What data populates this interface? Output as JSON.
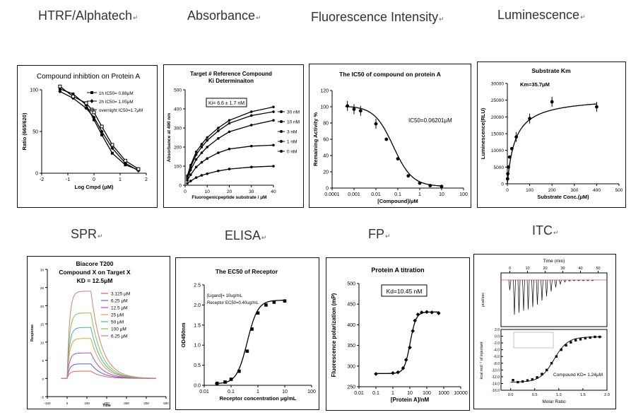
{
  "headings": {
    "htrf": "HTRF/Alphatech",
    "absorbance": "Absorbance",
    "fluorescence": "Fluorescence Intensity",
    "luminescence": "Luminescence",
    "spr": "SPR",
    "elisa": "ELISA",
    "fp": "FP",
    "itc": "ITC",
    "mark": "↵"
  },
  "chart_data": [
    {
      "id": "htrf",
      "type": "line",
      "title": "Compound inhibtion on Protein A",
      "xlabel": "Log Cmpd (μM)",
      "ylabel": "Ratio (665/620)",
      "xlim": [
        -2,
        2
      ],
      "xticks": [
        "-2",
        "-1",
        "0",
        "1",
        "2"
      ],
      "ylim": [
        0,
        100
      ],
      "yticks": [
        "0",
        "50",
        "100"
      ],
      "legend": [
        "1h IC50= 0.88μM",
        "2h IC50= 1.05μM",
        "overnight IC50=1.7μM"
      ],
      "series": [
        {
          "name": "1h IC50= 0.88μM",
          "x": [
            -1.3,
            -0.8,
            -0.3,
            0.0,
            0.3,
            0.7,
            1.2,
            1.7
          ],
          "y": [
            101,
            95,
            82,
            64,
            46,
            24,
            10,
            4
          ]
        },
        {
          "name": "2h IC50= 1.05μM",
          "x": [
            -1.3,
            -0.8,
            -0.3,
            0.0,
            0.3,
            0.7,
            1.2,
            1.7
          ],
          "y": [
            98,
            90,
            78,
            67,
            50,
            30,
            12,
            3
          ]
        },
        {
          "name": "overnight IC50=1.7μM",
          "x": [
            -1.3,
            -0.8,
            -0.3,
            0.0,
            0.3,
            0.7,
            1.2,
            1.7
          ],
          "y": [
            104,
            92,
            84,
            73,
            56,
            34,
            15,
            5
          ]
        }
      ]
    },
    {
      "id": "absorbance",
      "type": "line",
      "title": "Target # Reference Compound",
      "subtitle": "Ki Determinaiton",
      "annotation": "Ki= 6.6 ± 1.7 nM",
      "xlabel": "Fluorogenicpeptide substrate / μM",
      "ylabel": "Absorbance at 490 nm",
      "xlim": [
        0,
        40
      ],
      "xticks": [
        "0",
        "10",
        "20",
        "30",
        "40"
      ],
      "ylim": [
        0,
        500
      ],
      "yticks": [
        "0",
        "100",
        "200",
        "300",
        "400",
        "500"
      ],
      "legend": [
        "30 nM",
        "10 nM",
        "3 nM",
        "1 nM",
        "0 nM"
      ],
      "x": [
        1,
        2.5,
        5,
        7.5,
        10,
        15,
        20,
        30,
        40
      ],
      "series": [
        {
          "name": "30 nM",
          "values": [
            50,
            105,
            175,
            215,
            250,
            300,
            340,
            385,
            410
          ]
        },
        {
          "name": "10 nM",
          "values": [
            45,
            95,
            160,
            200,
            235,
            285,
            325,
            365,
            385
          ]
        },
        {
          "name": "3 nM",
          "values": [
            35,
            80,
            135,
            170,
            200,
            245,
            280,
            315,
            340
          ]
        },
        {
          "name": "1 nM",
          "values": [
            25,
            55,
            95,
            120,
            140,
            170,
            190,
            205,
            210
          ]
        },
        {
          "name": "0 nM",
          "values": [
            10,
            22,
            40,
            52,
            60,
            75,
            85,
            95,
            100
          ]
        }
      ]
    },
    {
      "id": "fluorescence",
      "type": "scatter",
      "title": "The IC50 of compound on protein A",
      "annotation": "IC50=0.06201μM",
      "xlabel": "[Compound]/μM",
      "ylabel": "Remaining Activity %",
      "xscale": "log",
      "xlim": [
        0.0001,
        100
      ],
      "xticks": [
        "0.0001",
        "0.001",
        "0.01",
        "0.1",
        "1",
        "10",
        "100"
      ],
      "ylim": [
        0,
        120
      ],
      "yticks": [
        "0",
        "20",
        "40",
        "60",
        "80",
        "100",
        "120"
      ],
      "x": [
        0.0005,
        0.001,
        0.002,
        0.01,
        0.03,
        0.1,
        0.3,
        1,
        3,
        10
      ],
      "values": [
        101,
        97,
        95,
        79,
        60,
        36,
        15,
        6,
        3,
        2
      ]
    },
    {
      "id": "luminescence",
      "type": "scatter",
      "title": "Substrate Km",
      "annotation": "Km=35.7μM",
      "xlabel": "Substrate Conc.(μM)",
      "ylabel": "Luminescence(RLU)",
      "xlim": [
        0,
        500
      ],
      "xticks": [
        "0",
        "100",
        "200",
        "300",
        "400",
        "500"
      ],
      "ylim": [
        0,
        30000
      ],
      "yticks": [
        "0",
        "5000",
        "10000",
        "15000",
        "20000",
        "25000",
        "30000"
      ],
      "x": [
        1,
        2,
        5,
        10,
        20,
        40,
        100,
        200,
        400
      ],
      "values": [
        1500,
        3000,
        5000,
        8000,
        10500,
        14000,
        19500,
        24500,
        23000
      ]
    },
    {
      "id": "spr",
      "type": "line",
      "title": "Biacore T200",
      "subtitle": "Compound X on Target X",
      "annotation": "KD = 12.5μM",
      "xlabel": "Time",
      "ylabel": "Response",
      "xlim": [
        -100,
        500
      ],
      "xticks": [
        "-100",
        "0",
        "100",
        "200",
        "300",
        "400",
        "500"
      ],
      "ylim": [
        -5,
        30
      ],
      "yticks": [
        "-5",
        "0",
        "5",
        "10",
        "15",
        "20",
        "25",
        "30"
      ],
      "legend": [
        "3.125 μM",
        "6.25 μM",
        "12.5 μM",
        "25 μM",
        "50 μM",
        "100 μM",
        "6.25 μM"
      ],
      "colors": [
        "#e06060",
        "#6060e0",
        "#b050b0",
        "#e0a040",
        "#40b0b0",
        "#90c040",
        "#d08080"
      ],
      "plateaus": [
        2,
        4,
        7,
        11,
        14,
        18,
        24
      ]
    },
    {
      "id": "elisa",
      "type": "scatter",
      "title": "The EC50 of Receptor",
      "annotation_line1": "[Ligand]= 10ug/mL",
      "annotation_line2": "Receptor EC50=0.40ug/mL",
      "xlabel": "Receptor concentration μg/mL",
      "ylabel": "OD450nm",
      "xscale": "log",
      "xlim": [
        0.01,
        100
      ],
      "xticks": [
        "0.01",
        "0.1",
        "1",
        "10",
        "100"
      ],
      "ylim": [
        0,
        2.5
      ],
      "yticks": [
        "0.0",
        "0.5",
        "1.0",
        "1.5",
        "2.0",
        "2.5"
      ],
      "x": [
        0.03,
        0.06,
        0.1,
        0.2,
        0.4,
        0.6,
        1,
        2,
        4,
        10
      ],
      "values": [
        0.05,
        0.08,
        0.15,
        0.35,
        0.85,
        1.4,
        1.8,
        2.0,
        2.07,
        2.1
      ]
    },
    {
      "id": "fp",
      "type": "scatter",
      "title": "Protein A titration",
      "annotation": "Kd=10.45 nM",
      "xlabel": "[Protein A]/nM",
      "ylabel": "Fluorescence polarization (mP)",
      "xscale": "log",
      "xlim": [
        0.01,
        10000
      ],
      "xticks": [
        "0.01",
        "0.1",
        "1",
        "10",
        "100",
        "1000",
        "10000"
      ],
      "ylim": [
        250,
        500
      ],
      "yticks": [
        "250",
        "300",
        "350",
        "400",
        "450",
        "500"
      ],
      "x": [
        0.1,
        1,
        2,
        4,
        6,
        10,
        15,
        20,
        30,
        50,
        100,
        200,
        500
      ],
      "values": [
        281,
        283,
        285,
        295,
        315,
        345,
        385,
        410,
        425,
        430,
        431,
        430,
        428
      ]
    },
    {
      "id": "itc",
      "type": "scatter",
      "top_xlabel": "Time (min)",
      "top_ylabel": "μcal/sec",
      "top_xticks": [
        "0",
        "10",
        "20",
        "30",
        "40",
        "50"
      ],
      "top_xlim": [
        -5,
        55
      ],
      "peaks": [
        0.25,
        0.85,
        0.8,
        0.75,
        0.72,
        0.66,
        0.6,
        0.5,
        0.4,
        0.28,
        0.18,
        0.1,
        0.05,
        0.03,
        0.02,
        0.02,
        0.02,
        0.02,
        0.02
      ],
      "annotation": "Compound KD= 1.24μM",
      "xlabel": "Molar Ratio",
      "ylabel": "kcal mol⁻¹ of injectant",
      "xlim": [
        -0.2,
        2.0
      ],
      "xticks": [
        "0.0",
        "0.5",
        "1.0",
        "1.5",
        "2.0"
      ],
      "ylim": [
        -16,
        2
      ],
      "yticks": [
        "2.0",
        "0.0",
        "-2.0",
        "-4.0",
        "-6.0",
        "-8.0",
        "-10.0",
        "-12.0",
        "-14.0",
        "-16.0"
      ],
      "x": [
        0.05,
        0.15,
        0.25,
        0.35,
        0.45,
        0.55,
        0.65,
        0.75,
        0.85,
        0.95,
        1.05,
        1.15,
        1.25,
        1.35,
        1.45,
        1.55,
        1.65,
        1.75,
        1.85
      ],
      "values": [
        -13.0,
        -13.6,
        -13.4,
        -13.1,
        -12.8,
        -12.2,
        -11.2,
        -10.0,
        -8.0,
        -6.0,
        -4.0,
        -2.7,
        -1.8,
        -1.2,
        -0.9,
        -0.6,
        -0.4,
        -0.2,
        -0.2
      ]
    }
  ]
}
